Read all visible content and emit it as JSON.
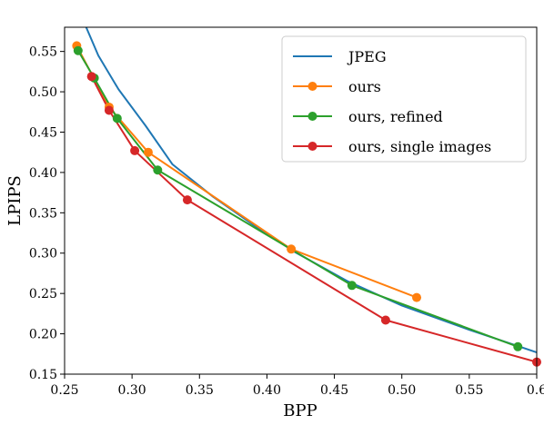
{
  "chart_data": {
    "type": "line",
    "xlabel": "BPP",
    "ylabel": "LPIPS",
    "xlim": [
      0.25,
      0.6
    ],
    "ylim": [
      0.15,
      0.58
    ],
    "xticks": [
      "0.25",
      "0.30",
      "0.35",
      "0.40",
      "0.45",
      "0.50",
      "0.55",
      "0.6"
    ],
    "yticks": [
      "0.15",
      "0.20",
      "0.25",
      "0.30",
      "0.35",
      "0.40",
      "0.45",
      "0.50",
      "0.55"
    ],
    "grid": false,
    "legend_position": "top-right",
    "series": [
      {
        "name": "JPEG",
        "color": "#1f77b4",
        "markers": false,
        "x": [
          0.266,
          0.275,
          0.29,
          0.31,
          0.33,
          0.36,
          0.39,
          0.42,
          0.46,
          0.5,
          0.55,
          0.6
        ],
        "y": [
          0.58,
          0.545,
          0.503,
          0.458,
          0.41,
          0.37,
          0.335,
          0.302,
          0.265,
          0.235,
          0.205,
          0.177
        ]
      },
      {
        "name": "ours",
        "color": "#ff7f0e",
        "markers": true,
        "x": [
          0.259,
          0.283,
          0.312,
          0.418,
          0.511
        ],
        "y": [
          0.557,
          0.481,
          0.425,
          0.305,
          0.245
        ]
      },
      {
        "name": "ours, refined",
        "color": "#2ca02c",
        "markers": true,
        "x": [
          0.26,
          0.272,
          0.289,
          0.319,
          0.463,
          0.586
        ],
        "y": [
          0.551,
          0.517,
          0.467,
          0.403,
          0.26,
          0.184
        ]
      },
      {
        "name": "ours, single images",
        "color": "#d62728",
        "markers": true,
        "x": [
          0.27,
          0.283,
          0.302,
          0.341,
          0.488,
          0.6
        ],
        "y": [
          0.519,
          0.477,
          0.427,
          0.366,
          0.217,
          0.165
        ]
      }
    ]
  }
}
